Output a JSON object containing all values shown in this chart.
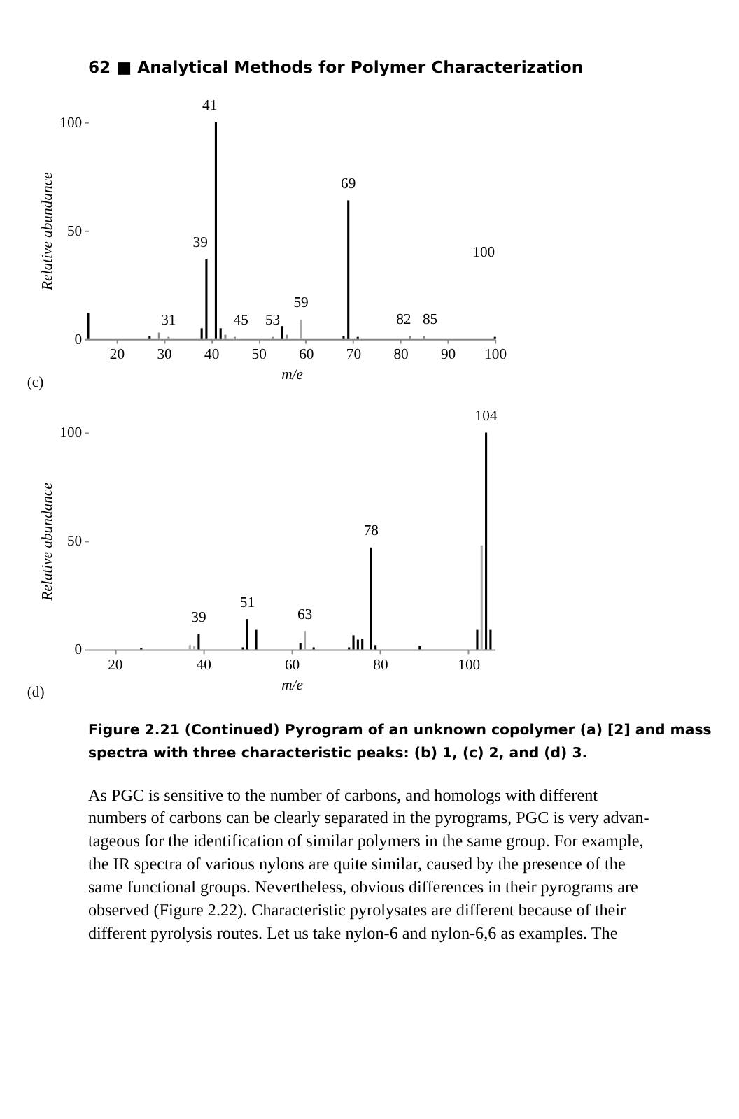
{
  "chart_data": [
    {
      "type": "bar",
      "xlabel": "m/e",
      "ylabel": "Relative abundance",
      "xlim": [
        14,
        100
      ],
      "ylim": [
        0,
        100
      ],
      "xticks": [
        20,
        30,
        40,
        50,
        60,
        70,
        80,
        90,
        100
      ],
      "yticks": [
        0,
        50,
        100
      ],
      "grid": false,
      "x": [
        14,
        27,
        29,
        31,
        38,
        39,
        41,
        42,
        43,
        45,
        53,
        55,
        56,
        59,
        68,
        69,
        71,
        82,
        85,
        100
      ],
      "values": [
        12,
        1.5,
        3,
        1,
        5,
        37,
        100,
        5,
        2,
        1,
        1,
        6,
        2,
        9,
        1.5,
        64,
        1,
        1.5,
        1.5,
        1
      ],
      "colors": [
        "#000000",
        "#000000",
        "#888888",
        "#888888",
        "#000000",
        "#000000",
        "#000000",
        "#000000",
        "#888888",
        "#888888",
        "#888888",
        "#000000",
        "#888888",
        "#aaaaaa",
        "#000000",
        "#000000",
        "#000000",
        "#888888",
        "#888888",
        "#000000"
      ],
      "annotations": [
        "62 ■ Analytical Methods for Polymer Characterization",
        "(c)",
        {
          "text": "41",
          "x": 41,
          "y": 100
        },
        {
          "text": "39",
          "x": 39,
          "y": 37
        },
        {
          "text": "69",
          "x": 69,
          "y": 64
        },
        {
          "text": "59",
          "x": 59,
          "y": 9
        },
        {
          "text": "31",
          "x": 31,
          "y": 1
        },
        {
          "text": "45",
          "x": 45,
          "y": 1
        },
        {
          "text": "53",
          "x": 53,
          "y": 1
        },
        {
          "text": "82",
          "x": 82,
          "y": 1.5
        },
        {
          "text": "85",
          "x": 85,
          "y": 1.5
        },
        "100"
      ]
    },
    {
      "type": "bar",
      "xlabel": "m/e",
      "ylabel": "Relative abundance",
      "xlim": [
        14,
        106
      ],
      "ylim": [
        0,
        100
      ],
      "xticks": [
        20,
        40,
        60,
        80,
        100
      ],
      "yticks": [
        0,
        50,
        100
      ],
      "grid": false,
      "x": [
        26,
        37,
        38,
        39,
        49,
        50,
        52,
        62,
        63,
        65,
        73,
        74,
        75,
        76,
        78,
        79,
        89,
        102,
        103,
        104,
        105
      ],
      "values": [
        0.5,
        2,
        1.5,
        7,
        1,
        14,
        9,
        3,
        8.5,
        1,
        1,
        6.5,
        4.5,
        5,
        47,
        2,
        1.5,
        9,
        48,
        100,
        9
      ],
      "colors": [
        "#000000",
        "#aaaaaa",
        "#aaaaaa",
        "#000000",
        "#000000",
        "#000000",
        "#000000",
        "#000000",
        "#aaaaaa",
        "#000000",
        "#000000",
        "#000000",
        "#000000",
        "#000000",
        "#000000",
        "#000000",
        "#000000",
        "#000000",
        "#aaaaaa",
        "#000000",
        "#000000"
      ],
      "annotations": [
        "(d)",
        "Figure 2.21 (Continued)   Pyrogram of an unknown copolymer (a) [2] and mass",
        "spectra with three characteristic peaks: (b) 1, (c) 2, and (d) 3.",
        "     As PGC is sensitive to the number of carbons, and homologs with different",
        "numbers of carbons can be clearly separated in the pyrograms, PGC is very advan-",
        "tageous for the identification of similar polymers in the same group. For example,",
        "the IR spectra of various nylons are quite similar, caused by the presence of the",
        "same functional groups. Nevertheless, obvious differences in their pyrograms are",
        "observed (Figure 2.22). Characteristic pyrolysates are different because of their",
        "different pyrolysis routes. Let us take nylon-6 and nylon-6,6 as examples. The",
        {
          "text": "39",
          "x": 39,
          "y": 7
        },
        {
          "text": "51",
          "x": 50,
          "y": 14
        },
        {
          "text": "63",
          "x": 63,
          "y": 8.5
        },
        {
          "text": "78",
          "x": 78,
          "y": 47
        },
        {
          "text": "104",
          "x": 104,
          "y": 100
        }
      ]
    }
  ]
}
